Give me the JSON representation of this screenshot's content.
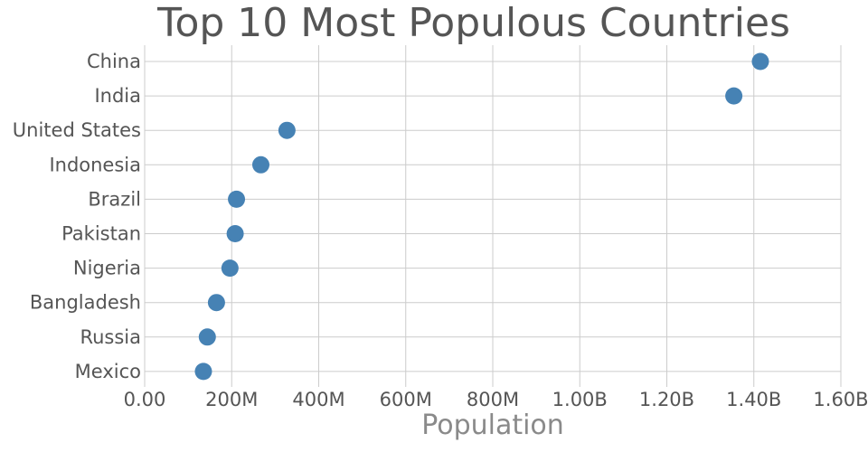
{
  "chart_data": {
    "type": "scatter",
    "title": "Top 10 Most Populous Countries",
    "xlabel": "Population",
    "ylabel": "",
    "categories": [
      "China",
      "India",
      "United States",
      "Indonesia",
      "Brazil",
      "Pakistan",
      "Nigeria",
      "Bangladesh",
      "Russia",
      "Mexico"
    ],
    "values": [
      1415000000,
      1354000000,
      327000000,
      267000000,
      211000000,
      208000000,
      196000000,
      165000000,
      144000000,
      135000000
    ],
    "xlim": [
      0,
      1600000000
    ],
    "xticks": [
      0,
      200000000,
      400000000,
      600000000,
      800000000,
      1000000000,
      1200000000,
      1400000000,
      1600000000
    ],
    "xtick_labels": [
      "0.00",
      "200M",
      "400M",
      "600M",
      "800M",
      "1.00B",
      "1.20B",
      "1.40B",
      "1.60B"
    ],
    "grid": true,
    "marker_color": "#4682b4"
  }
}
